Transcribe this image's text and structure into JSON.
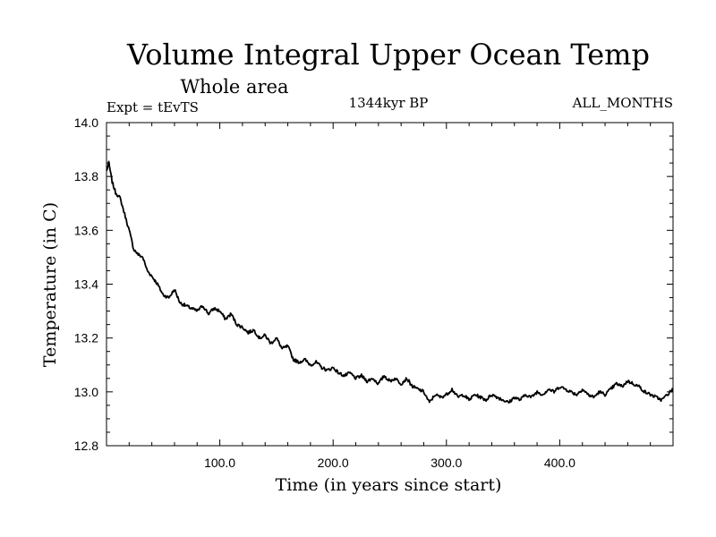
{
  "chart_data": {
    "type": "line",
    "title": "Volume Integral Upper Ocean Temp",
    "subtitle": "Whole area",
    "left_label": "Expt = tEvTS",
    "center_label": "1344kyr BP",
    "right_label": "ALL_MONTHS",
    "xlabel": "Time (in years since start)",
    "ylabel": "Temperature (in C)",
    "xlim": [
      0,
      500
    ],
    "ylim": [
      12.8,
      14.0
    ],
    "x_ticks": [
      100,
      200,
      300,
      400
    ],
    "x_tick_labels": [
      "100.0",
      "200.0",
      "300.0",
      "400.0"
    ],
    "y_ticks": [
      12.8,
      13.0,
      13.2,
      13.4,
      13.6,
      13.8,
      14.0
    ],
    "y_tick_labels": [
      "12.8",
      "13.0",
      "13.2",
      "13.4",
      "13.6",
      "13.8",
      "14.0"
    ],
    "grid": false,
    "series": [
      {
        "name": "Volume Integral Upper Ocean Temp",
        "x": [
          0,
          2,
          5,
          8,
          12,
          16,
          20,
          24,
          28,
          32,
          36,
          40,
          45,
          50,
          55,
          60,
          65,
          70,
          75,
          80,
          85,
          90,
          95,
          100,
          105,
          110,
          115,
          120,
          125,
          130,
          135,
          140,
          145,
          150,
          155,
          160,
          165,
          170,
          175,
          180,
          185,
          190,
          195,
          200,
          205,
          210,
          215,
          220,
          225,
          230,
          235,
          240,
          245,
          250,
          255,
          260,
          265,
          270,
          275,
          280,
          285,
          290,
          295,
          300,
          305,
          310,
          315,
          320,
          325,
          330,
          335,
          340,
          345,
          350,
          355,
          360,
          365,
          370,
          375,
          380,
          385,
          390,
          395,
          400,
          405,
          410,
          415,
          420,
          425,
          430,
          435,
          440,
          445,
          450,
          455,
          460,
          465,
          470,
          475,
          480,
          485,
          490,
          495,
          500
        ],
        "values": [
          13.82,
          13.85,
          13.78,
          13.74,
          13.72,
          13.66,
          13.6,
          13.53,
          13.51,
          13.5,
          13.45,
          13.43,
          13.4,
          13.36,
          13.35,
          13.38,
          13.33,
          13.32,
          13.31,
          13.3,
          13.32,
          13.29,
          13.31,
          13.3,
          13.27,
          13.29,
          13.25,
          13.24,
          13.22,
          13.23,
          13.2,
          13.21,
          13.18,
          13.2,
          13.16,
          13.17,
          13.12,
          13.11,
          13.12,
          13.1,
          13.11,
          13.09,
          13.08,
          13.09,
          13.07,
          13.06,
          13.07,
          13.05,
          13.06,
          13.04,
          13.05,
          13.03,
          13.06,
          13.04,
          13.05,
          13.03,
          13.05,
          13.02,
          13.01,
          13.0,
          12.96,
          12.99,
          12.98,
          12.99,
          13.01,
          12.98,
          12.99,
          12.97,
          12.99,
          12.98,
          12.97,
          12.99,
          12.98,
          12.97,
          12.96,
          12.98,
          12.97,
          12.99,
          12.98,
          13.0,
          12.99,
          13.01,
          13.0,
          13.02,
          13.01,
          13.0,
          12.99,
          13.01,
          12.99,
          12.98,
          13.0,
          12.99,
          13.01,
          13.03,
          13.02,
          13.04,
          13.03,
          13.02,
          13.0,
          12.99,
          12.98,
          12.97,
          12.99,
          13.01
        ]
      }
    ]
  }
}
